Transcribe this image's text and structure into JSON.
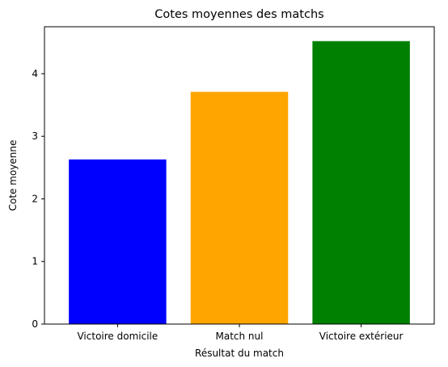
{
  "chart_data": {
    "type": "bar",
    "title": "Cotes moyennes des matchs",
    "xlabel": "Résultat du match",
    "ylabel": "Cote moyenne",
    "categories": [
      "Victoire domicile",
      "Match nul",
      "Victoire extérieur"
    ],
    "values": [
      2.63,
      3.71,
      4.52
    ],
    "colors": [
      "#0000ff",
      "#ffa500",
      "#008000"
    ],
    "ylim": [
      0,
      4.75
    ],
    "yticks": [
      0,
      1,
      2,
      3,
      4
    ],
    "grid": false,
    "legend": false
  }
}
